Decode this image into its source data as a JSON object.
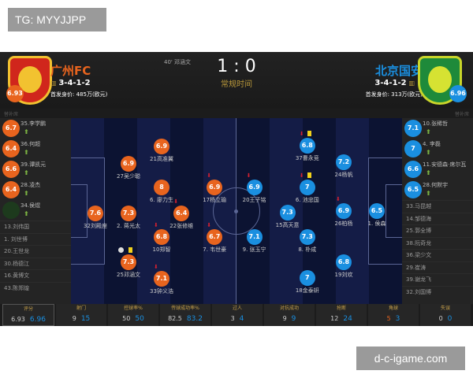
{
  "tag": "TG: MYYJJPP",
  "watermark": "d-c-igame.com",
  "match": {
    "score": "1 : 0",
    "period": "常规时间",
    "event": "40' 邓涵文"
  },
  "home": {
    "name": "广州FC",
    "formation": "3-4-1-2",
    "value": "首发身价: 485万(欧元)",
    "rating": "6.93",
    "color": "#e8641e",
    "bench_label": "替补席",
    "bench_rated": [
      {
        "rating": "6.7",
        "name": "35.李学鹏"
      },
      {
        "rating": "6.4",
        "name": "36.何超"
      },
      {
        "rating": "6.6",
        "name": "39.谭凯元"
      },
      {
        "rating": "6.4",
        "name": "28.凌杰"
      },
      {
        "rating": "",
        "name": "34.侯煜"
      }
    ],
    "bench": [
      "13.刘伟国",
      "1. 刘世博",
      "20.王世龙",
      "30.杨德江",
      "16.黄博文",
      "43.陈郑煌"
    ],
    "players": [
      {
        "rating": "7.6",
        "name": "32刘殿座",
        "col": 0.5,
        "row": 268
      },
      {
        "rating": "7.3",
        "name": "2. 蒋光太",
        "col": 1.5,
        "row": 268
      },
      {
        "rating": "6.9",
        "name": "27吴少聪",
        "col": 1.5,
        "row": 205
      },
      {
        "rating": "7.3",
        "name": "25邓涵文",
        "col": 1.5,
        "row": 330,
        "yellow": true,
        "goal": true
      },
      {
        "rating": "6.9",
        "name": "21高准翼",
        "col": 2.5,
        "row": 183
      },
      {
        "rating": "8",
        "name": "6. 廖力生",
        "col": 2.5,
        "row": 235
      },
      {
        "rating": "6.8",
        "name": "10郑智",
        "col": 2.5,
        "row": 298,
        "sub": true
      },
      {
        "rating": "7.1",
        "name": "33钟义浩",
        "col": 2.5,
        "row": 351,
        "sub": true
      },
      {
        "rating": "6.4",
        "name": "22张修维",
        "col": 3.1,
        "row": 268,
        "sub": true
      },
      {
        "rating": "6.9",
        "name": "17杨立瑜",
        "col": 4.1,
        "row": 235,
        "sub": true
      },
      {
        "rating": "6.7",
        "name": "7. 韦世豪",
        "col": 4.1,
        "row": 298,
        "sub": true
      }
    ]
  },
  "away": {
    "name": "北京国安",
    "formation": "3-4-1-2",
    "value": "首发身价: 313万(欧元)",
    "rating": "6.96",
    "color": "#1a8fe0",
    "bench_label": "替补席",
    "bench_rated": [
      {
        "rating": "7.1",
        "name": "10.张稀哲"
      },
      {
        "rating": "7",
        "name": "4. 李磊"
      },
      {
        "rating": "6.6",
        "name": "11.安德森·席尔瓦"
      },
      {
        "rating": "6.5",
        "name": "28.何默宇"
      }
    ],
    "bench": [
      "33.马昆越",
      "14.邹德海",
      "25.郭全博",
      "38.阮奇龙",
      "36.梁少文",
      "29.崔涛",
      "39.谢龙飞",
      "32.刘国博"
    ],
    "players": [
      {
        "rating": "6.9",
        "name": "20王子铭",
        "col": 5.3,
        "row": 235,
        "sub": true
      },
      {
        "rating": "7.1",
        "name": "9. 张玉宁",
        "col": 5.3,
        "row": 298
      },
      {
        "rating": "6.8",
        "name": "37曹永竞",
        "col": 6.9,
        "row": 182,
        "yellow": true,
        "sub": true
      },
      {
        "rating": "7",
        "name": "6. 池忠国",
        "col": 6.9,
        "row": 235,
        "yellow": true,
        "sub": true
      },
      {
        "rating": "7.3",
        "name": "15高天意",
        "col": 6.3,
        "row": 267
      },
      {
        "rating": "7.3",
        "name": "8. 朴成",
        "col": 6.9,
        "row": 298
      },
      {
        "rating": "7",
        "name": "18金泰妍",
        "col": 6.9,
        "row": 350
      },
      {
        "rating": "7.2",
        "name": "24杨帆",
        "col": 8.0,
        "row": 203
      },
      {
        "rating": "6.9",
        "name": "26柏杨",
        "col": 8.0,
        "row": 265,
        "sub": true
      },
      {
        "rating": "6.8",
        "name": "19刘欢",
        "col": 8.0,
        "row": 330
      },
      {
        "rating": "6.5",
        "name": "1. 侯森",
        "col": 9.0,
        "row": 265
      }
    ]
  },
  "stats": [
    {
      "label": "评分",
      "home": "6.93",
      "away": "6.96"
    },
    {
      "label": "射门",
      "home": "9",
      "away": "15"
    },
    {
      "label": "控球率%",
      "home": "50",
      "away": "50"
    },
    {
      "label": "传球成功率%",
      "home": "82.5",
      "away": "83.2"
    },
    {
      "label": "过人",
      "home": "3",
      "away": "4"
    },
    {
      "label": "对抗成功",
      "home": "9",
      "away": "9"
    },
    {
      "label": "抢断",
      "home": "12",
      "away": "24"
    },
    {
      "label": "角球",
      "home": "5",
      "away": "3",
      "home_highlight": true
    },
    {
      "label": "失误",
      "home": "0",
      "away": "0"
    }
  ]
}
